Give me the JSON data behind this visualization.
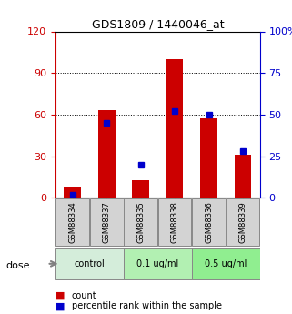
{
  "title": "GDS1809 / 1440046_at",
  "categories": [
    "GSM88334",
    "GSM88337",
    "GSM88335",
    "GSM88338",
    "GSM88336",
    "GSM88339"
  ],
  "red_bars": [
    8,
    63,
    13,
    100,
    57,
    31
  ],
  "blue_pct": [
    2,
    45,
    20,
    52,
    50,
    28
  ],
  "groups": [
    {
      "label": "control",
      "indices": [
        0,
        1
      ],
      "color": "#d4edda"
    },
    {
      "label": "0.1 ug/ml",
      "indices": [
        2,
        3
      ],
      "color": "#b2f0b2"
    },
    {
      "label": "0.5 ug/ml",
      "indices": [
        4,
        5
      ],
      "color": "#90ee90"
    }
  ],
  "left_ylim": [
    0,
    120
  ],
  "right_ylim": [
    0,
    100
  ],
  "left_yticks": [
    0,
    30,
    60,
    90,
    120
  ],
  "right_yticks": [
    0,
    25,
    50,
    75,
    100
  ],
  "right_yticklabels": [
    "0",
    "25",
    "50",
    "75",
    "100%"
  ],
  "left_axis_color": "#cc0000",
  "right_axis_color": "#0000cc",
  "bar_color": "#cc0000",
  "marker_color": "#0000cc",
  "bar_width": 0.5,
  "grid_color": "#000000",
  "bg_color": "#ffffff",
  "plot_bg": "#ffffff",
  "dose_label": "dose",
  "legend_count": "count",
  "legend_pct": "percentile rank within the sample"
}
